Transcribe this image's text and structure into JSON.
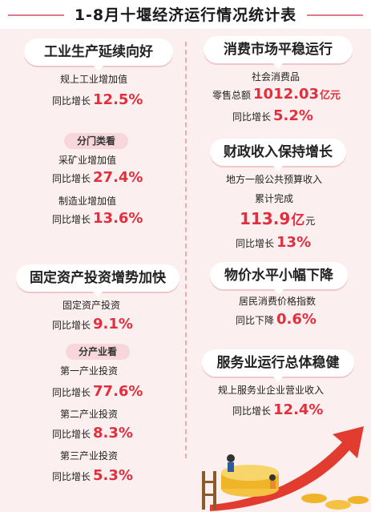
{
  "title": "1-8月十堰经济运行情况统计表",
  "industry": {
    "heading": "工业生产延续向好",
    "metric_label": "规上工业增加值",
    "growth_prefix": "同比增长",
    "growth_value": "12.5%",
    "breakdown_label": "分门类看",
    "items": [
      {
        "label": "采矿业增加值",
        "growth_prefix": "同比增长",
        "growth_value": "27.4%"
      },
      {
        "label": "制造业增加值",
        "growth_prefix": "同比增长",
        "growth_value": "13.6%"
      }
    ]
  },
  "investment": {
    "heading": "固定资产投资增势加快",
    "metric_label": "固定资产投资",
    "growth_prefix": "同比增长",
    "growth_value": "9.1%",
    "breakdown_label": "分产业看",
    "items": [
      {
        "label": "第一产业投资",
        "growth_prefix": "同比增长",
        "growth_value": "77.6%"
      },
      {
        "label": "第二产业投资",
        "growth_prefix": "同比增长",
        "growth_value": "8.3%"
      },
      {
        "label": "第三产业投资",
        "growth_prefix": "同比增长",
        "growth_value": "5.3%"
      }
    ]
  },
  "consumption": {
    "heading": "消费市场平稳运行",
    "line1": "社会消费品",
    "total_prefix": "零售总额",
    "total_value": "1012.03",
    "total_unit": "亿元",
    "growth_prefix": "同比增长",
    "growth_value": "5.2%"
  },
  "revenue": {
    "heading": "财政收入保持增长",
    "line1": "地方一般公共预算收入",
    "line2": "累计完成",
    "total_value": "113.9",
    "total_unit_big": "亿",
    "total_unit_small": "元",
    "growth_prefix": "同比增长",
    "growth_value": "13%"
  },
  "prices": {
    "heading": "物价水平小幅下降",
    "line1": "居民消费价格指数",
    "change_prefix": "同比下降",
    "change_value": "0.6%"
  },
  "services": {
    "heading": "服务业运行总体稳健",
    "line1": "规上服务业企业营业收入",
    "growth_prefix": "同比增长",
    "growth_value": "12.4%"
  },
  "colors": {
    "accent_red": "#e0303d",
    "background_pink": "#fbeff0",
    "pill_pink": "#f7d7dc",
    "coin_gold": "#f0b429"
  }
}
